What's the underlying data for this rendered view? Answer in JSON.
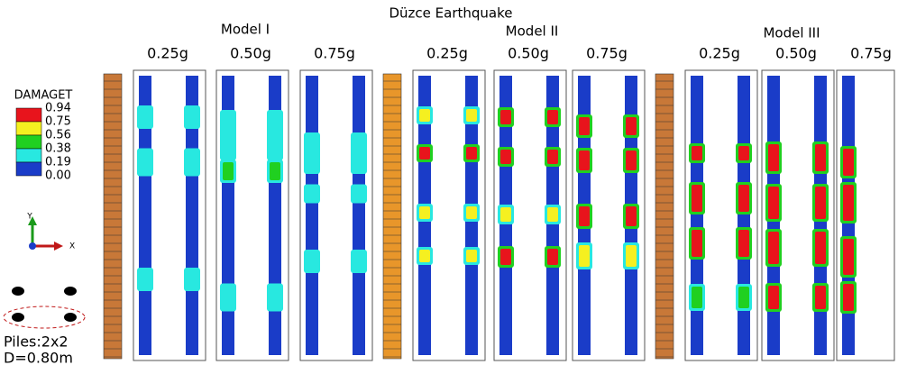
{
  "title": "Düzce Earthquake",
  "models": [
    {
      "label": "Model I",
      "panels": [
        "0.25g",
        "0.50g",
        "0.75g"
      ]
    },
    {
      "label": "Model II",
      "panels": [
        "0.25g",
        "0.50g",
        "0.75g"
      ]
    },
    {
      "label": "Model III",
      "panels": [
        "0.25g",
        "0.50g",
        "0.75g"
      ]
    }
  ],
  "legend": {
    "title": "DAMAGET",
    "levels": [
      {
        "label": "0.94",
        "color": "#e8141c"
      },
      {
        "label": "0.75",
        "color": "#f5f020"
      },
      {
        "label": "0.56",
        "color": "#20d020"
      },
      {
        "label": "0.38",
        "color": "#28e8e0"
      },
      {
        "label": "0.19",
        "color": "#1a3cc8"
      },
      {
        "label": "0.00",
        "color": "#1a3cc8"
      }
    ]
  },
  "axes": {
    "y": "Y",
    "x": "X"
  },
  "piles": {
    "layout": "Piles:2x2",
    "diameter": "D=0.80m"
  }
}
